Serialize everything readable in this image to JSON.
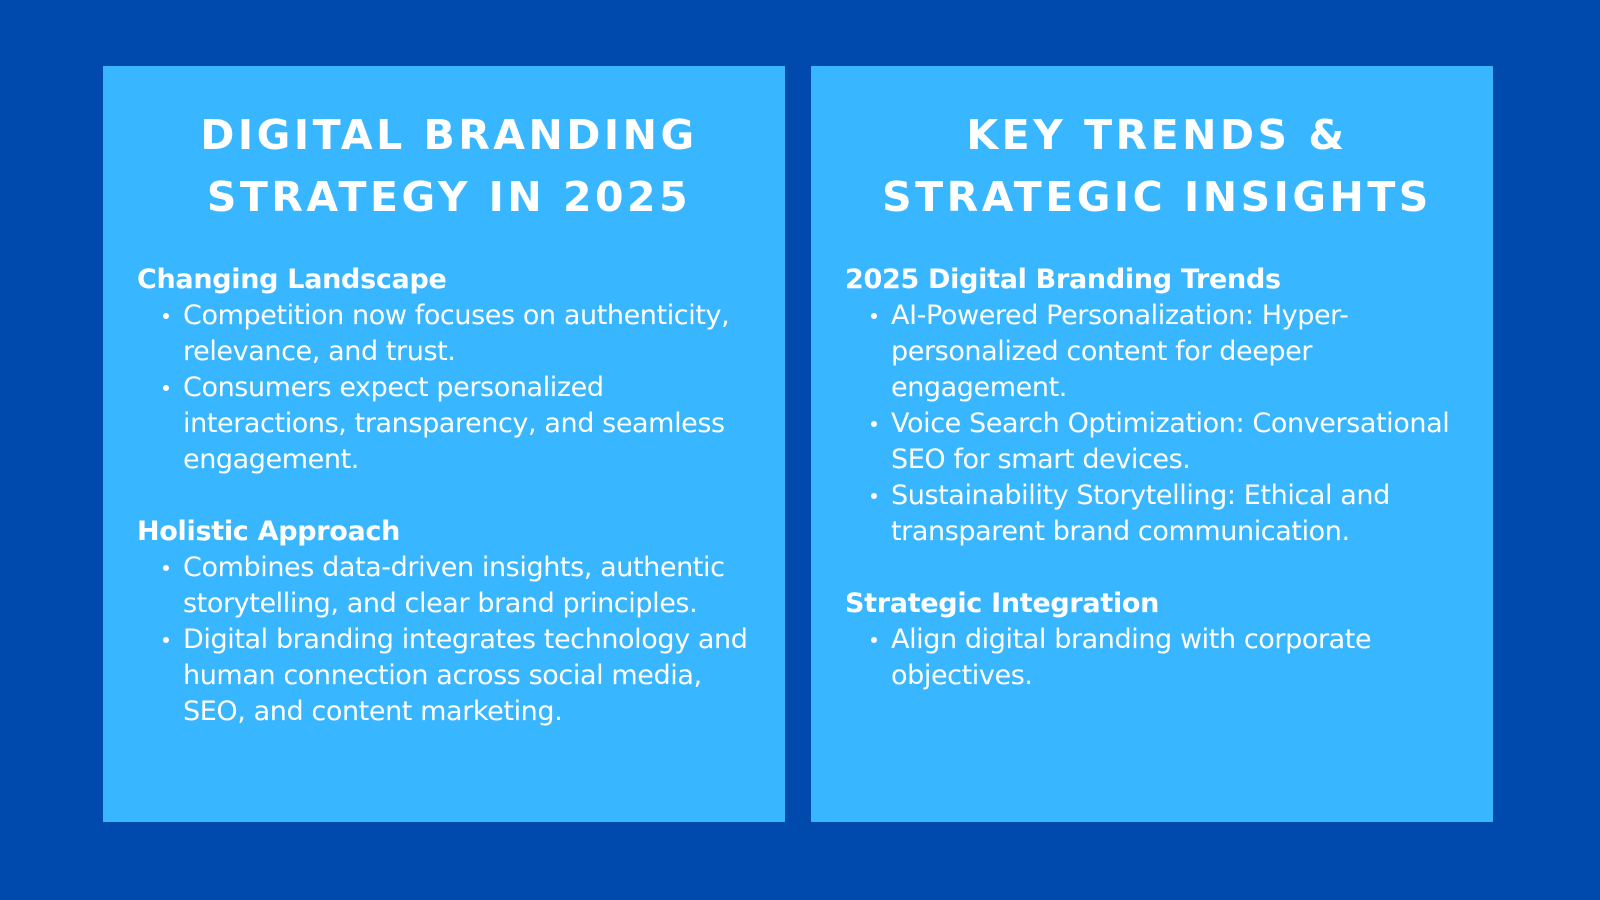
{
  "colors": {
    "background": "#004AAD",
    "panel": "#38B6FF",
    "text": "#FFFFFF"
  },
  "left": {
    "title_line1": "DIGITAL BRANDING",
    "title_line2": "STRATEGY IN 2025",
    "sections": [
      {
        "heading": "Changing Landscape",
        "items": [
          "Competition now focuses on authenticity, relevance, and trust.",
          "Consumers expect personalized interactions, transparency, and seamless engagement."
        ]
      },
      {
        "heading": "Holistic Approach",
        "items": [
          "Combines data-driven insights, authentic storytelling, and clear brand principles.",
          "Digital branding integrates technology and human connection across social media, SEO, and content marketing."
        ]
      }
    ]
  },
  "right": {
    "title_line1": "KEY TRENDS &",
    "title_line2": "STRATEGIC INSIGHTS",
    "sections": [
      {
        "heading": "2025 Digital Branding Trends",
        "items": [
          "AI-Powered Personalization: Hyper-personalized content for deeper engagement.",
          "Voice Search Optimization: Conversational SEO for smart devices.",
          "Sustainability Storytelling: Ethical and transparent brand communication."
        ]
      },
      {
        "heading": "Strategic Integration",
        "items": [
          "Align digital branding with corporate objectives."
        ]
      }
    ]
  }
}
